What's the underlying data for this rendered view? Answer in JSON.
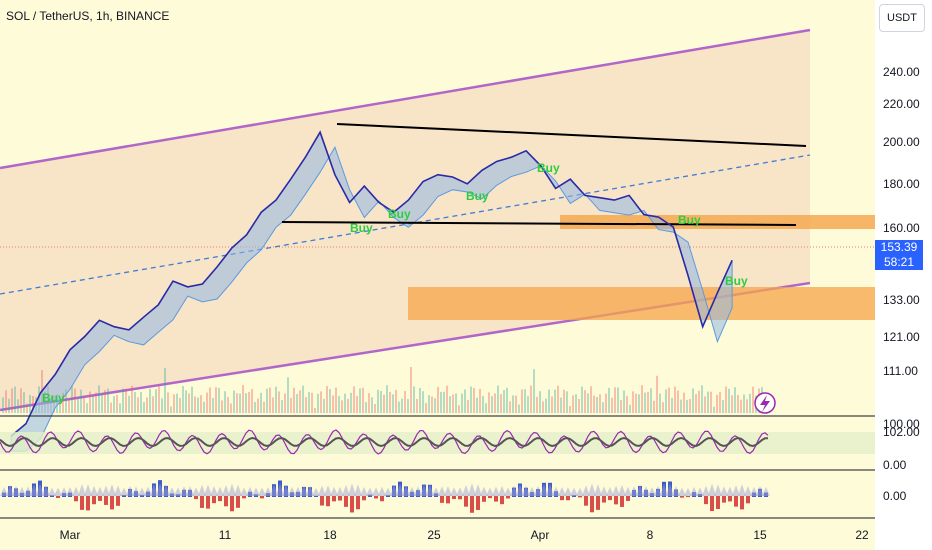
{
  "header": {
    "title": "SOL / TetherUS, 1h, BINANCE",
    "currency_button": "USDT"
  },
  "price_badge": {
    "price": "153.39",
    "countdown": "58:21"
  },
  "colors": {
    "background": "#fefbd9",
    "channel": "#b266c9",
    "channel_fill": "#f6dcc0",
    "zone": "#f5a54a",
    "trend_line": "#000000",
    "midline": "#3d7dd8",
    "price_badge": "#2962ff",
    "buy_label": "#2ecc40"
  },
  "chart_data": {
    "type": "line",
    "title": "SOL / TetherUS, 1h, BINANCE",
    "y_scale": "log",
    "ylim": [
      98,
      268
    ],
    "y_ticks": [
      "240.00",
      "220.00",
      "200.00",
      "180.00",
      "160.00",
      "133.00",
      "121.00",
      "111.00",
      "102.00"
    ],
    "x_ticks": [
      "Mar",
      "11",
      "18",
      "25",
      "Apr",
      "8",
      "15",
      "22"
    ],
    "series": [
      {
        "x": [
          "Feb 26",
          "Feb 27",
          "Feb 28",
          "Feb 29",
          "Mar 1",
          "Mar 2",
          "Mar 3",
          "Mar 4",
          "Mar 5",
          "Mar 6",
          "Mar 7",
          "Mar 8",
          "Mar 9",
          "Mar 10",
          "Mar 11",
          "Mar 12",
          "Mar 13",
          "Mar 14",
          "Mar 15",
          "Mar 16",
          "Mar 17",
          "Mar 18",
          "Mar 19",
          "Mar 20",
          "Mar 21",
          "Mar 22",
          "Mar 23",
          "Mar 24",
          "Mar 25",
          "Mar 26",
          "Mar 27",
          "Mar 28",
          "Mar 29",
          "Mar 30",
          "Mar 31",
          "Apr 1",
          "Apr 2",
          "Apr 3",
          "Apr 4",
          "Apr 5",
          "Apr 6",
          "Apr 7",
          "Apr 8",
          "Apr 9",
          "Apr 10",
          "Apr 11",
          "Apr 12",
          "Apr 13",
          "Apr 14",
          "Apr 15"
        ],
        "values": [
          101,
          104,
          112,
          117,
          124,
          128,
          133,
          131,
          130,
          134,
          138,
          146,
          144,
          145,
          151,
          158,
          163,
          172,
          177,
          186,
          196,
          208,
          188,
          176,
          183,
          176,
          172,
          177,
          185,
          188,
          187,
          184,
          190,
          194,
          196,
          199,
          192,
          182,
          186,
          179,
          178,
          177,
          179,
          171,
          170,
          166,
          148,
          131,
          142,
          153.39
        ]
      }
    ],
    "annotations": [
      "Buy",
      "Buy",
      "Buy",
      "Buy",
      "Buy",
      "Buy",
      "Buy"
    ],
    "oscillator_ticks": [
      "100.00",
      "0.00"
    ],
    "histogram_ticks": [
      "0.00"
    ]
  }
}
